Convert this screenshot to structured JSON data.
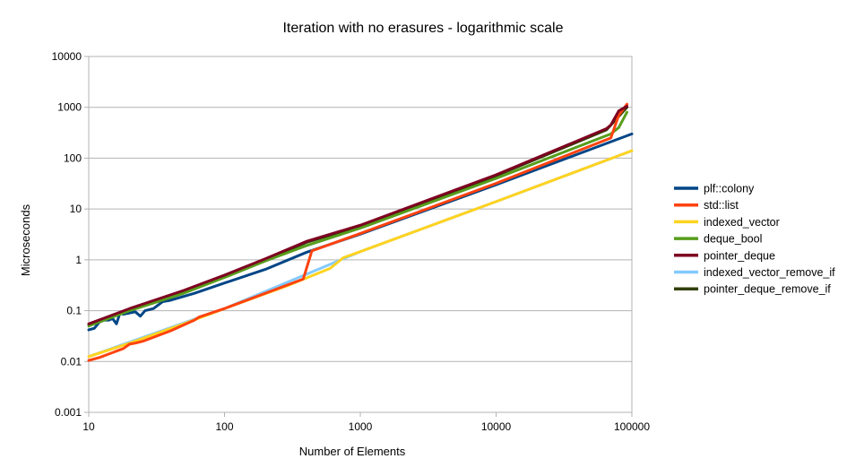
{
  "chart_data": {
    "type": "line",
    "title": "Iteration with no erasures - logarithmic scale",
    "xlabel": "Number of Elements",
    "ylabel": "Microseconds",
    "xscale": "log",
    "yscale": "log",
    "xlim": [
      10,
      100000
    ],
    "ylim": [
      0.001,
      10000
    ],
    "x_ticks": [
      "10",
      "100",
      "1000",
      "10000",
      "100000"
    ],
    "y_ticks": [
      "0.001",
      "0.01",
      "0.1",
      "1",
      "10",
      "100",
      "1000",
      "10000"
    ],
    "grid": "horizontal",
    "legend_position": "right",
    "series": [
      {
        "name": "plf::colony",
        "color": "#004586",
        "points": [
          [
            10,
            0.042
          ],
          [
            11,
            0.045
          ],
          [
            12,
            0.06
          ],
          [
            13,
            0.065
          ],
          [
            14,
            0.065
          ],
          [
            15,
            0.07
          ],
          [
            16,
            0.055
          ],
          [
            17,
            0.09
          ],
          [
            18,
            0.085
          ],
          [
            20,
            0.09
          ],
          [
            22,
            0.095
          ],
          [
            24,
            0.078
          ],
          [
            26,
            0.1
          ],
          [
            30,
            0.11
          ],
          [
            35,
            0.15
          ],
          [
            40,
            0.16
          ],
          [
            60,
            0.22
          ],
          [
            100,
            0.35
          ],
          [
            200,
            0.65
          ],
          [
            400,
            1.4
          ],
          [
            1000,
            3.2
          ],
          [
            10000,
            30
          ],
          [
            100000,
            300
          ]
        ]
      },
      {
        "name": "std::list",
        "color": "#ff420e",
        "points": [
          [
            10,
            0.0105
          ],
          [
            12,
            0.012
          ],
          [
            14,
            0.014
          ],
          [
            16,
            0.016
          ],
          [
            18,
            0.018
          ],
          [
            20,
            0.022
          ],
          [
            22,
            0.023
          ],
          [
            25,
            0.025
          ],
          [
            30,
            0.03
          ],
          [
            40,
            0.04
          ],
          [
            60,
            0.065
          ],
          [
            65,
            0.075
          ],
          [
            100,
            0.11
          ],
          [
            200,
            0.22
          ],
          [
            380,
            0.42
          ],
          [
            440,
            1.5
          ],
          [
            1000,
            3.3
          ],
          [
            10000,
            32
          ],
          [
            70000,
            250
          ],
          [
            80000,
            700
          ],
          [
            92000,
            1150
          ]
        ]
      },
      {
        "name": "indexed_vector",
        "color": "#ffd320",
        "points": [
          [
            10,
            0.0125
          ],
          [
            20,
            0.023
          ],
          [
            50,
            0.055
          ],
          [
            100,
            0.11
          ],
          [
            300,
            0.32
          ],
          [
            600,
            0.68
          ],
          [
            750,
            1.1
          ],
          [
            1000,
            1.45
          ],
          [
            10000,
            14
          ],
          [
            100000,
            140
          ]
        ]
      },
      {
        "name": "deque_bool",
        "color": "#579d1c",
        "points": [
          [
            10,
            0.05
          ],
          [
            20,
            0.1
          ],
          [
            50,
            0.22
          ],
          [
            100,
            0.45
          ],
          [
            200,
            0.95
          ],
          [
            400,
            1.9
          ],
          [
            1000,
            4.2
          ],
          [
            10000,
            40
          ],
          [
            70000,
            300
          ],
          [
            80000,
            400
          ],
          [
            92000,
            800
          ]
        ]
      },
      {
        "name": "pointer_deque",
        "color": "#7e0021",
        "points": [
          [
            10,
            0.055
          ],
          [
            20,
            0.11
          ],
          [
            50,
            0.25
          ],
          [
            100,
            0.5
          ],
          [
            200,
            1.05
          ],
          [
            400,
            2.3
          ],
          [
            1000,
            4.8
          ],
          [
            10000,
            47
          ],
          [
            65000,
            380
          ],
          [
            70000,
            450
          ],
          [
            80000,
            850
          ],
          [
            92000,
            1050
          ]
        ]
      },
      {
        "name": "indexed_vector_remove_if",
        "color": "#83caff",
        "points": [
          [
            10,
            0.0125
          ],
          [
            100,
            0.11
          ],
          [
            1000,
            1.45
          ],
          [
            10000,
            14
          ],
          [
            100000,
            140
          ]
        ]
      },
      {
        "name": "pointer_deque_remove_if",
        "color": "#314004",
        "points": [
          [
            10,
            0.054
          ],
          [
            20,
            0.105
          ],
          [
            50,
            0.24
          ],
          [
            100,
            0.48
          ],
          [
            200,
            1.0
          ],
          [
            400,
            2.2
          ],
          [
            1000,
            4.6
          ],
          [
            10000,
            45
          ],
          [
            65000,
            360
          ],
          [
            92000,
            1000
          ]
        ]
      }
    ]
  }
}
